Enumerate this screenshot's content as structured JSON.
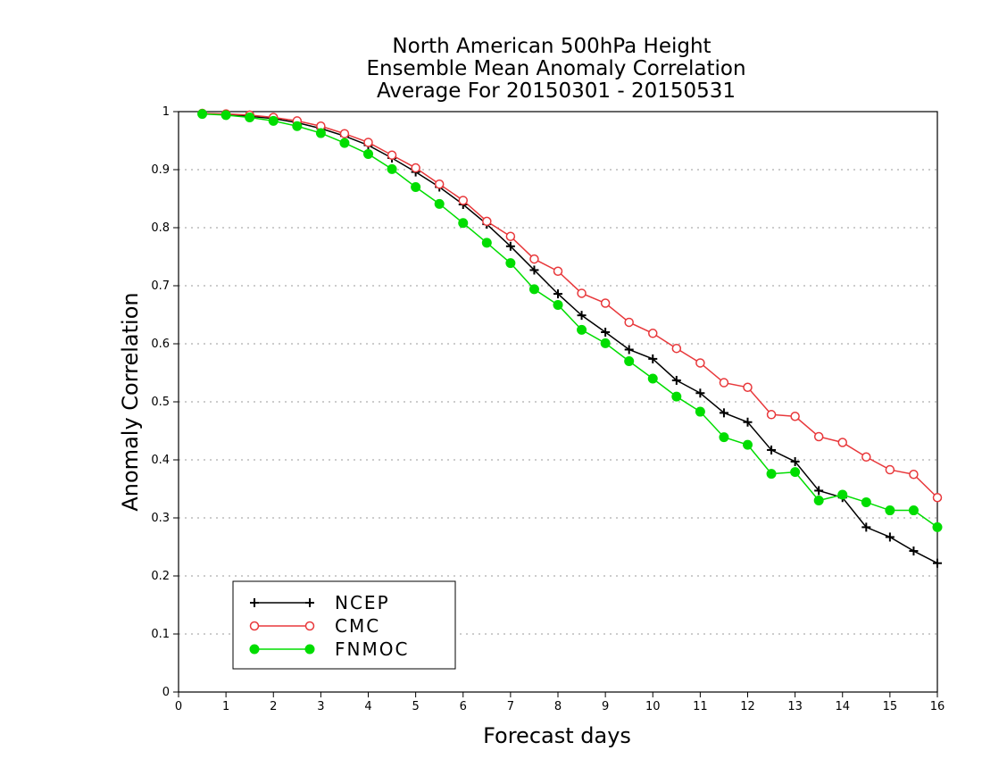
{
  "chart_data": {
    "type": "line",
    "title": [
      "North American 500hPa Height",
      "Ensemble Mean Anomaly Correlation",
      "Average For 20150301 - 20150531"
    ],
    "xlabel": "Forecast days",
    "ylabel": "Anomaly Correlation",
    "xlim": [
      0,
      16
    ],
    "ylim": [
      0,
      1
    ],
    "xticks": [
      0,
      1,
      2,
      3,
      4,
      5,
      6,
      7,
      8,
      9,
      10,
      11,
      12,
      13,
      14,
      15,
      16
    ],
    "yticks": [
      0,
      0.1,
      0.2,
      0.3,
      0.4,
      0.5,
      0.6,
      0.7,
      0.8,
      0.9,
      1
    ],
    "ytick_labels": [
      "0",
      "0.1",
      "0.2",
      "0.3",
      "0.4",
      "0.5",
      "0.6",
      "0.7",
      "0.8",
      "0.9",
      "1"
    ],
    "grid": "horizontal-dotted",
    "legend_position": "bottom-left",
    "x": [
      0.5,
      1,
      1.5,
      2,
      2.5,
      3,
      3.5,
      4,
      4.5,
      5,
      5.5,
      6,
      6.5,
      7,
      7.5,
      8,
      8.5,
      9,
      9.5,
      10,
      10.5,
      11,
      11.5,
      12,
      12.5,
      13,
      13.5,
      14,
      14.5,
      15,
      15.5,
      16
    ],
    "series": [
      {
        "name": "NCEP",
        "color": "#000000",
        "marker": "plus",
        "values": [
          0.997,
          0.995,
          0.992,
          0.988,
          0.981,
          0.971,
          0.958,
          0.942,
          0.92,
          0.896,
          0.87,
          0.84,
          0.806,
          0.768,
          0.727,
          0.686,
          0.649,
          0.62,
          0.59,
          0.574,
          0.537,
          0.515,
          0.481,
          0.465,
          0.417,
          0.397,
          0.347,
          0.335,
          0.284,
          0.267,
          0.243,
          0.222
        ]
      },
      {
        "name": "CMC",
        "color": "#e8383b",
        "marker": "open-circle",
        "values": [
          0.997,
          0.996,
          0.994,
          0.99,
          0.984,
          0.975,
          0.962,
          0.947,
          0.925,
          0.903,
          0.875,
          0.847,
          0.811,
          0.785,
          0.746,
          0.725,
          0.687,
          0.67,
          0.637,
          0.618,
          0.592,
          0.567,
          0.533,
          0.525,
          0.478,
          0.475,
          0.44,
          0.43,
          0.405,
          0.383,
          0.375,
          0.335
        ]
      },
      {
        "name": "FNMOC",
        "color": "#00dd00",
        "marker": "filled-circle",
        "values": [
          0.996,
          0.994,
          0.99,
          0.984,
          0.975,
          0.963,
          0.946,
          0.927,
          0.901,
          0.87,
          0.841,
          0.808,
          0.774,
          0.739,
          0.694,
          0.667,
          0.624,
          0.601,
          0.57,
          0.54,
          0.509,
          0.483,
          0.439,
          0.426,
          0.376,
          0.379,
          0.33,
          0.34,
          0.327,
          0.313,
          0.313,
          0.284
        ]
      }
    ]
  }
}
